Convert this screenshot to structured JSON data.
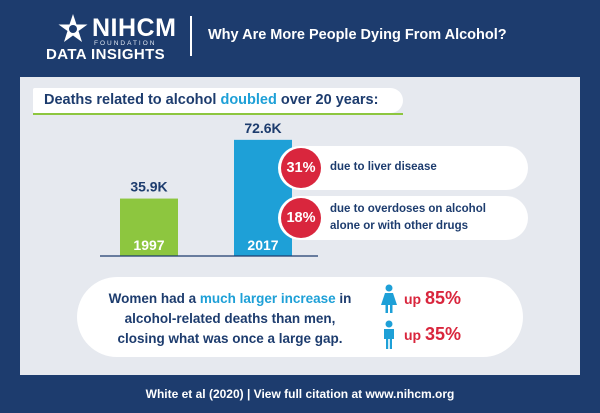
{
  "header": {
    "logo_name": "NIHCM",
    "logo_foundation": "FOUNDATION",
    "logo_sub": "DATA INSIGHTS",
    "title": "Why Are More People Dying From Alcohol?"
  },
  "headline": {
    "before": "Deaths related to alcohol ",
    "highlight": "doubled",
    "after": " over 20 years:"
  },
  "chart_data": {
    "type": "bar",
    "title": "Deaths related to alcohol doubled over 20 years:",
    "categories": [
      "1997",
      "2017"
    ],
    "values": [
      35.9,
      72.6
    ],
    "value_labels": [
      "35.9K",
      "72.6K"
    ],
    "ylim": [
      0,
      80
    ],
    "colors": [
      "#8dc63f",
      "#1ea0d7"
    ],
    "annotations": [
      {
        "percent": "31%",
        "text": "due to liver disease"
      },
      {
        "percent": "18%",
        "text": "due to overdoses on alcohol alone or with other drugs"
      }
    ]
  },
  "annotation_lines": {
    "liver": [
      "due to liver disease"
    ],
    "overdose": [
      "due to overdoses on alcohol",
      "alone or with other drugs"
    ]
  },
  "women": {
    "line1_before": "Women had a ",
    "line1_highlight": "much larger increase",
    "line1_after": " in",
    "line2": "alcohol-related deaths than men,",
    "line3": "closing what was once a large gap.",
    "female_icon": "female-figure-icon",
    "male_icon": "male-figure-icon",
    "stat_women_prefix": "up ",
    "stat_women_value": "85%",
    "stat_men_prefix": "up ",
    "stat_men_value": "35%"
  },
  "colors": {
    "navy": "#1d3c6e",
    "blue": "#1ea0d7",
    "green": "#8dc63f",
    "red": "#d9263d"
  },
  "footer": {
    "citation": "White et al (2020) | View full citation at www.nihcm.org"
  }
}
